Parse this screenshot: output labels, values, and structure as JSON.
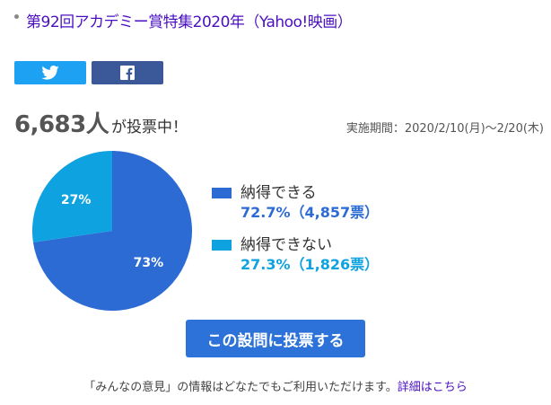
{
  "topic": {
    "title": "第92回アカデミー賞特集2020年（Yahoo!映画）"
  },
  "share": {
    "twitter_icon": "twitter-bird-icon",
    "facebook_icon": "facebook-f-icon"
  },
  "votes": {
    "count": "6,683人",
    "suffix": "が投票中！",
    "period": "実施期間：2020/2/10(月)〜2/20(木)"
  },
  "chart_data": {
    "type": "pie",
    "series": [
      {
        "name": "納得できる",
        "percent": 72.7,
        "count": 4857,
        "slice_label": "73%",
        "legend_value": "72.7%（4,857票）",
        "color": "#2d6bd4"
      },
      {
        "name": "納得できない",
        "percent": 27.3,
        "count": 1826,
        "slice_label": "27%",
        "legend_value": "27.3%（1,826票）",
        "color": "#0ea2e0"
      }
    ]
  },
  "vote_button": {
    "label": "この設問に投票する",
    "color": "#2d72d9"
  },
  "footer": {
    "text": "「みんなの意見」の情報はどなたでもご利用いただけます。",
    "link": "詳細はこちら"
  }
}
